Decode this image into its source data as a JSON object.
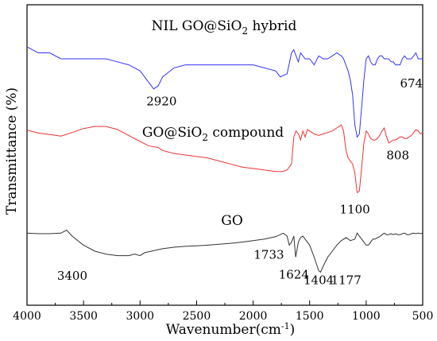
{
  "chart_data": {
    "type": "line",
    "title": "",
    "xlabel": "Wavenumber(cm",
    "xlabel_sup": "-1",
    "xlabel_end": ")",
    "ylabel": "Transmittance (%)",
    "xlim": [
      4000,
      500
    ],
    "x_ticks": [
      "4000",
      "3500",
      "3000",
      "2500",
      "2000",
      "1500",
      "1000",
      "500"
    ],
    "grid": false,
    "series": [
      {
        "name": "NIL GO@SiO",
        "name_sub": "2",
        "name_end": " hybrid",
        "color": "#3333ff",
        "x": [
          4000,
          3900,
          3800,
          3700,
          3600,
          3500,
          3400,
          3300,
          3200,
          3100,
          3000,
          2960,
          2920,
          2880,
          2840,
          2800,
          2700,
          2600,
          2500,
          2400,
          2300,
          2200,
          2100,
          2000,
          1900,
          1800,
          1760,
          1700,
          1660,
          1640,
          1620,
          1600,
          1580,
          1540,
          1500,
          1460,
          1420,
          1380,
          1340,
          1300,
          1260,
          1220,
          1200,
          1180,
          1160,
          1140,
          1120,
          1100,
          1080,
          1060,
          1040,
          1020,
          1000,
          980,
          960,
          940,
          920,
          900,
          880,
          860,
          840,
          820,
          800,
          780,
          760,
          740,
          720,
          700,
          680,
          660,
          640,
          620,
          600,
          580,
          560,
          540,
          520,
          500
        ],
        "y": [
          0.86,
          0.84,
          0.84,
          0.82,
          0.82,
          0.82,
          0.82,
          0.82,
          0.81,
          0.8,
          0.78,
          0.76,
          0.74,
          0.72,
          0.73,
          0.76,
          0.79,
          0.8,
          0.8,
          0.8,
          0.8,
          0.8,
          0.8,
          0.8,
          0.79,
          0.78,
          0.76,
          0.77,
          0.84,
          0.85,
          0.83,
          0.81,
          0.84,
          0.82,
          0.82,
          0.8,
          0.83,
          0.82,
          0.82,
          0.83,
          0.84,
          0.83,
          0.82,
          0.8,
          0.78,
          0.75,
          0.7,
          0.6,
          0.56,
          0.57,
          0.66,
          0.75,
          0.82,
          0.83,
          0.81,
          0.8,
          0.8,
          0.82,
          0.83,
          0.83,
          0.82,
          0.82,
          0.82,
          0.81,
          0.81,
          0.8,
          0.8,
          0.8,
          0.82,
          0.83,
          0.82,
          0.82,
          0.82,
          0.83,
          0.84,
          0.82,
          0.82,
          0.82
        ]
      },
      {
        "name": "GO@SiO",
        "name_sub": "2",
        "name_end": " compound",
        "color": "#ee3333",
        "x": [
          4000,
          3900,
          3800,
          3700,
          3600,
          3500,
          3400,
          3300,
          3200,
          3100,
          3000,
          2920,
          2840,
          2800,
          2700,
          2600,
          2500,
          2400,
          2300,
          2200,
          2100,
          2000,
          1900,
          1800,
          1740,
          1700,
          1660,
          1640,
          1620,
          1600,
          1580,
          1560,
          1540,
          1520,
          1500,
          1460,
          1420,
          1380,
          1340,
          1300,
          1260,
          1220,
          1200,
          1180,
          1160,
          1140,
          1120,
          1100,
          1080,
          1060,
          1040,
          1020,
          1000,
          980,
          960,
          940,
          920,
          900,
          880,
          860,
          840,
          820,
          800,
          780,
          760,
          740,
          720,
          700,
          680,
          660,
          640,
          620,
          600,
          580,
          560,
          540,
          520,
          500
        ],
        "y": [
          0.583,
          0.573,
          0.568,
          0.563,
          0.575,
          0.588,
          0.595,
          0.595,
          0.585,
          0.565,
          0.545,
          0.53,
          0.525,
          0.515,
          0.505,
          0.5,
          0.495,
          0.49,
          0.48,
          0.47,
          0.46,
          0.455,
          0.45,
          0.445,
          0.445,
          0.45,
          0.47,
          0.56,
          0.58,
          0.57,
          0.55,
          0.58,
          0.56,
          0.585,
          0.58,
          0.57,
          0.565,
          0.57,
          0.575,
          0.58,
          0.59,
          0.6,
          0.58,
          0.52,
          0.49,
          0.48,
          0.47,
          0.44,
          0.375,
          0.38,
          0.46,
          0.54,
          0.58,
          0.57,
          0.555,
          0.55,
          0.55,
          0.555,
          0.565,
          0.58,
          0.59,
          0.56,
          0.54,
          0.545,
          0.55,
          0.55,
          0.555,
          0.56,
          0.56,
          0.555,
          0.555,
          0.56,
          0.565,
          0.575,
          0.585,
          0.58,
          0.57,
          0.575
        ]
      },
      {
        "name": "GO",
        "name_sub": "",
        "name_end": "",
        "color": "#333333",
        "x": [
          4000,
          3900,
          3800,
          3700,
          3650,
          3600,
          3500,
          3400,
          3300,
          3200,
          3100,
          3050,
          3000,
          2960,
          2900,
          2800,
          2700,
          2600,
          2500,
          2400,
          2300,
          2200,
          2100,
          2000,
          1900,
          1800,
          1760,
          1733,
          1700,
          1680,
          1660,
          1640,
          1624,
          1600,
          1580,
          1560,
          1540,
          1500,
          1460,
          1420,
          1404,
          1380,
          1340,
          1300,
          1260,
          1220,
          1177,
          1140,
          1100,
          1080,
          1060,
          1040,
          1020,
          1000,
          980,
          960,
          940,
          920,
          900,
          880,
          860,
          840,
          820,
          800,
          780,
          760,
          740,
          720,
          700,
          680,
          660,
          640,
          620,
          600,
          580,
          560,
          540,
          520,
          500
        ],
        "y": [
          0.24,
          0.238,
          0.238,
          0.24,
          0.25,
          0.23,
          0.2,
          0.18,
          0.17,
          0.165,
          0.165,
          0.17,
          0.165,
          0.175,
          0.18,
          0.188,
          0.193,
          0.196,
          0.198,
          0.2,
          0.203,
          0.206,
          0.21,
          0.215,
          0.22,
          0.228,
          0.235,
          0.24,
          0.23,
          0.2,
          0.21,
          0.23,
          0.16,
          0.21,
          0.225,
          0.23,
          0.22,
          0.2,
          0.16,
          0.115,
          0.11,
          0.13,
          0.16,
          0.18,
          0.2,
          0.215,
          0.225,
          0.215,
          0.22,
          0.24,
          0.23,
          0.22,
          0.21,
          0.2,
          0.2,
          0.21,
          0.22,
          0.22,
          0.225,
          0.228,
          0.235,
          0.24,
          0.235,
          0.235,
          0.238,
          0.235,
          0.238,
          0.235,
          0.235,
          0.238,
          0.24,
          0.235,
          0.235,
          0.238,
          0.24,
          0.238,
          0.24,
          0.238,
          0.24
        ]
      }
    ],
    "annotations": [
      {
        "text": "2920",
        "x": 2810,
        "y": 0.665
      },
      {
        "text": "674",
        "x": 600,
        "y": 0.725
      },
      {
        "text": "808",
        "x": 720,
        "y": 0.485
      },
      {
        "text": "1100",
        "x": 1100,
        "y": 0.305
      },
      {
        "text": "3400",
        "x": 3600,
        "y": 0.085
      },
      {
        "text": "1733",
        "x": 1860,
        "y": 0.155
      },
      {
        "text": "1624",
        "x": 1640,
        "y": 0.088
      },
      {
        "text": "1404",
        "x": 1420,
        "y": 0.07
      },
      {
        "text": "1177",
        "x": 1177,
        "y": 0.07
      }
    ]
  }
}
